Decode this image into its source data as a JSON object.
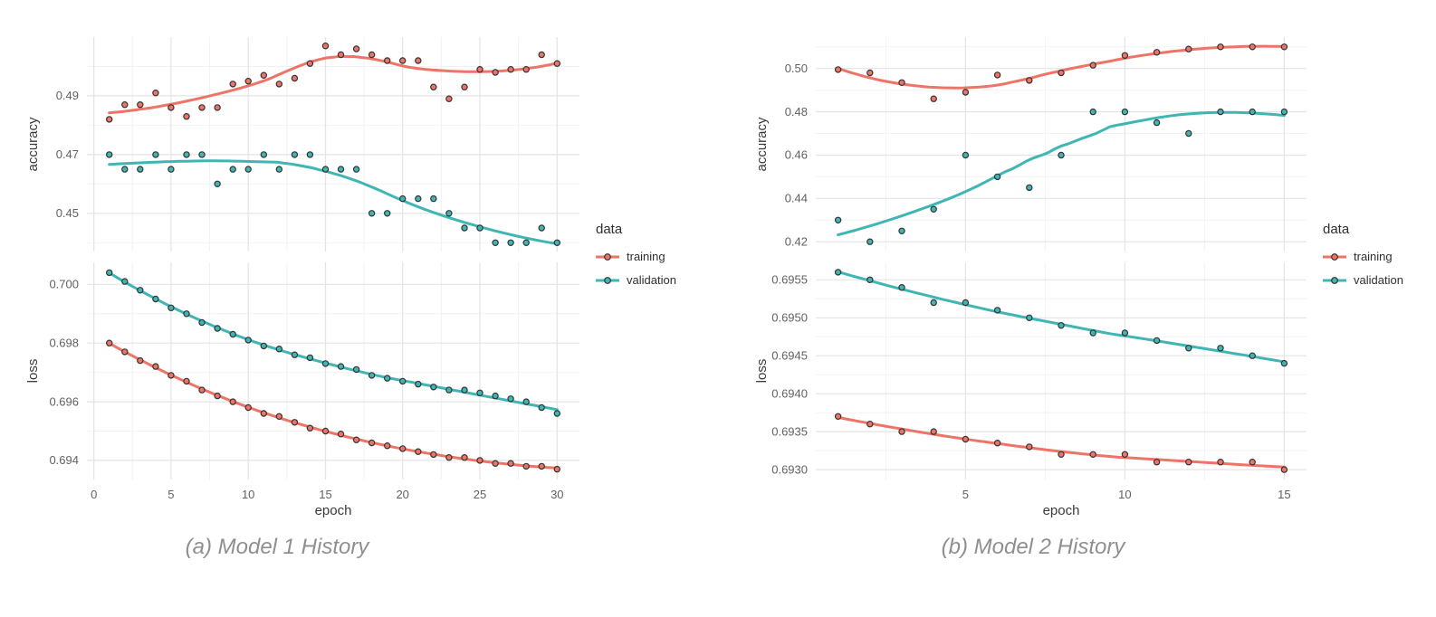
{
  "page": {
    "background": "#ffffff"
  },
  "palette": {
    "training": "#EE7467",
    "validation": "#3FB6B4",
    "point_outline": "#333333",
    "grid_major": "#e4e4e4",
    "grid_minor": "#f2f2f2",
    "axis_text": "#616161",
    "axis_title": "#3a3a3a",
    "legend_text": "#2f2f2f",
    "caption_color": "#8f8f8f"
  },
  "chart_data": [
    {
      "caption": "(a) Model 1 History",
      "type": "scatter",
      "smooth": true,
      "smooth_span": 0.75,
      "xlabel": "epoch",
      "x_domain": [
        -0.45,
        31.45
      ],
      "x_ticks": [
        0,
        5,
        10,
        15,
        20,
        25,
        30
      ],
      "x_tick_labels": [
        "0",
        "5",
        "10",
        "15",
        "20",
        "25",
        "30"
      ],
      "epochs": [
        1,
        2,
        3,
        4,
        5,
        6,
        7,
        8,
        9,
        10,
        11,
        12,
        13,
        14,
        15,
        16,
        17,
        18,
        19,
        20,
        21,
        22,
        23,
        24,
        25,
        26,
        27,
        28,
        29,
        30
      ],
      "legend": {
        "title": "data",
        "items": [
          "training",
          "validation"
        ]
      },
      "panels": [
        {
          "name": "accuracy",
          "ylabel": "accuracy",
          "y_domain": [
            0.437,
            0.51
          ],
          "y_ticks": [
            0.45,
            0.47,
            0.49
          ],
          "y_tick_labels": [
            "0.45",
            "0.47",
            "0.49"
          ],
          "series": [
            {
              "name": "training",
              "color": "training",
              "values": [
                0.482,
                0.487,
                0.487,
                0.491,
                0.486,
                0.483,
                0.486,
                0.486,
                0.494,
                0.495,
                0.497,
                0.494,
                0.496,
                0.501,
                0.507,
                0.504,
                0.506,
                0.504,
                0.502,
                0.502,
                0.502,
                0.493,
                0.489,
                0.493,
                0.499,
                0.498,
                0.499,
                0.499,
                0.504,
                0.501
              ]
            },
            {
              "name": "validation",
              "color": "validation",
              "values": [
                0.47,
                0.465,
                0.465,
                0.47,
                0.465,
                0.47,
                0.47,
                0.46,
                0.465,
                0.465,
                0.47,
                0.465,
                0.47,
                0.47,
                0.465,
                0.465,
                0.465,
                0.45,
                0.45,
                0.455,
                0.455,
                0.455,
                0.45,
                0.445,
                0.445,
                0.44,
                0.44,
                0.44,
                0.445,
                0.44
              ]
            }
          ]
        },
        {
          "name": "loss",
          "ylabel": "loss",
          "y_domain": [
            0.69335,
            0.70075
          ],
          "y_ticks": [
            0.694,
            0.696,
            0.698,
            0.7
          ],
          "y_tick_labels": [
            "0.694",
            "0.696",
            "0.698",
            "0.700"
          ],
          "series": [
            {
              "name": "training",
              "color": "training",
              "values": [
                0.698,
                0.6977,
                0.6974,
                0.6972,
                0.6969,
                0.6967,
                0.6964,
                0.6962,
                0.696,
                0.6958,
                0.6956,
                0.6955,
                0.6953,
                0.6951,
                0.695,
                0.6949,
                0.6947,
                0.6946,
                0.6945,
                0.6944,
                0.6943,
                0.6942,
                0.6941,
                0.6941,
                0.694,
                0.6939,
                0.6939,
                0.6938,
                0.6938,
                0.6937
              ]
            },
            {
              "name": "validation",
              "color": "validation",
              "values": [
                0.7004,
                0.7001,
                0.6998,
                0.6995,
                0.6992,
                0.699,
                0.6987,
                0.6985,
                0.6983,
                0.6981,
                0.6979,
                0.6978,
                0.6976,
                0.6975,
                0.6973,
                0.6972,
                0.6971,
                0.6969,
                0.6968,
                0.6967,
                0.6966,
                0.6965,
                0.6964,
                0.6964,
                0.6963,
                0.6962,
                0.6961,
                0.696,
                0.6958,
                0.6956
              ]
            }
          ]
        }
      ]
    },
    {
      "caption": "(b) Model 2 History",
      "type": "scatter",
      "smooth": true,
      "smooth_span": 0.75,
      "xlabel": "epoch",
      "x_domain": [
        0.3,
        15.7
      ],
      "x_ticks": [
        5,
        10,
        15
      ],
      "x_tick_labels": [
        "5",
        "10",
        "15"
      ],
      "epochs": [
        1,
        2,
        3,
        4,
        5,
        6,
        7,
        8,
        9,
        10,
        11,
        12,
        13,
        14,
        15
      ],
      "legend": {
        "title": "data",
        "items": [
          "training",
          "validation"
        ]
      },
      "panels": [
        {
          "name": "accuracy",
          "ylabel": "accuracy",
          "y_domain": [
            0.4155,
            0.5145
          ],
          "y_ticks": [
            0.42,
            0.44,
            0.46,
            0.48,
            0.5
          ],
          "y_tick_labels": [
            "0.42",
            "0.44",
            "0.46",
            "0.48",
            "0.50"
          ],
          "series": [
            {
              "name": "training",
              "color": "training",
              "values": [
                0.4995,
                0.498,
                0.4935,
                0.486,
                0.489,
                0.497,
                0.4945,
                0.498,
                0.5015,
                0.506,
                0.5075,
                0.509,
                0.51,
                0.51,
                0.51
              ]
            },
            {
              "name": "validation",
              "color": "validation",
              "values": [
                0.43,
                0.42,
                0.425,
                0.435,
                0.46,
                0.45,
                0.445,
                0.46,
                0.48,
                0.48,
                0.475,
                0.47,
                0.48,
                0.48,
                0.48
              ]
            }
          ]
        },
        {
          "name": "loss",
          "ylabel": "loss",
          "y_domain": [
            0.69287,
            0.69573
          ],
          "y_ticks": [
            0.693,
            0.6935,
            0.694,
            0.6945,
            0.695,
            0.6955
          ],
          "y_tick_labels": [
            "0.6930",
            "0.6935",
            "0.6940",
            "0.6945",
            "0.6950",
            "0.6955"
          ],
          "series": [
            {
              "name": "training",
              "color": "training",
              "values": [
                0.6937,
                0.6936,
                0.6935,
                0.6935,
                0.6934,
                0.69335,
                0.6933,
                0.6932,
                0.6932,
                0.6932,
                0.6931,
                0.6931,
                0.6931,
                0.6931,
                0.693
              ]
            },
            {
              "name": "validation",
              "color": "validation",
              "values": [
                0.6956,
                0.6955,
                0.6954,
                0.6952,
                0.6952,
                0.6951,
                0.695,
                0.6949,
                0.6948,
                0.6948,
                0.6947,
                0.6946,
                0.6946,
                0.6945,
                0.6944
              ]
            }
          ]
        }
      ]
    }
  ]
}
